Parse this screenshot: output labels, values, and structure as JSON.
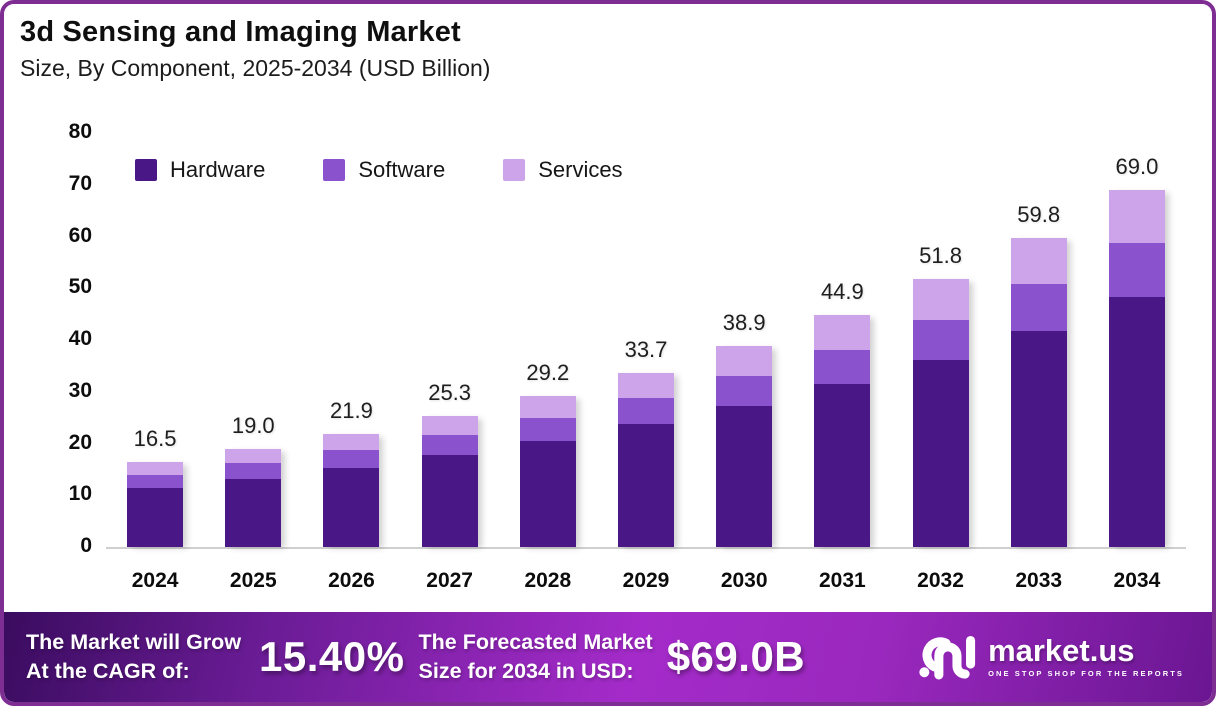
{
  "header": {
    "title": "3d Sensing and Imaging Market",
    "subtitle": "Size, By Component, 2025-2034 (USD Billion)"
  },
  "colors": {
    "border": "#7E2D92",
    "hardware": "#4A1787",
    "software": "#8A52CD",
    "services": "#CDA4E9",
    "axis_line": "#cfcfcf"
  },
  "chart_data": {
    "type": "bar",
    "stacked": true,
    "title": "3d Sensing and Imaging Market",
    "subtitle": "Size, By Component, 2025-2034 (USD Billion)",
    "categories": [
      "2024",
      "2025",
      "2026",
      "2027",
      "2028",
      "2029",
      "2030",
      "2031",
      "2032",
      "2033",
      "2034"
    ],
    "series": [
      {
        "name": "Hardware",
        "color": "#4A1787",
        "values": [
          11.4,
          13.1,
          15.3,
          17.8,
          20.5,
          23.8,
          27.3,
          31.5,
          36.2,
          41.8,
          48.3
        ]
      },
      {
        "name": "Software",
        "color": "#8A52CD",
        "values": [
          2.5,
          3.1,
          3.4,
          3.8,
          4.4,
          4.9,
          5.7,
          6.6,
          7.6,
          9.0,
          10.5
        ]
      },
      {
        "name": "Services",
        "color": "#CDA4E9",
        "values": [
          2.6,
          2.8,
          3.2,
          3.7,
          4.3,
          5.0,
          5.9,
          6.8,
          8.0,
          9.0,
          10.2
        ]
      }
    ],
    "totals": [
      16.5,
      19.0,
      21.9,
      25.3,
      29.2,
      33.7,
      38.9,
      44.9,
      51.8,
      59.8,
      69.0
    ],
    "ylabel": "",
    "xlabel": "",
    "ylim": [
      0,
      80
    ],
    "ytick_step": 10,
    "grid": false,
    "legend_position": "top-left"
  },
  "footer": {
    "cagr_label": {
      "line1": "The Market will Grow",
      "line2": "At the CAGR of:"
    },
    "cagr_value": "15.40%",
    "forecast_label": {
      "line1": "The Forecasted Market",
      "line2": "Size for 2034 in USD:"
    },
    "forecast_value": "$69.0B",
    "logo": {
      "name": "market.us",
      "tagline": "ONE STOP SHOP FOR THE REPORTS"
    }
  }
}
